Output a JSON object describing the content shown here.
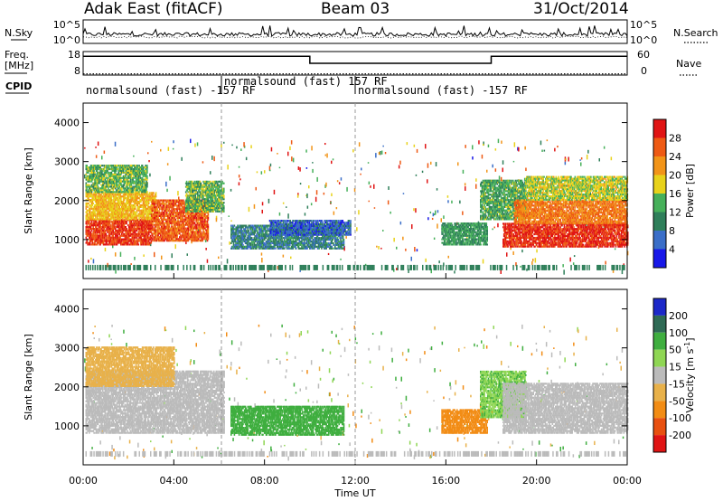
{
  "header": {
    "radar": "Adak East (fitACF)",
    "beam": "Beam 03",
    "date": "31/Oct/2014"
  },
  "chart_data": [
    {
      "type": "line",
      "panel": "noise",
      "left_label": "N.Sky",
      "right_label": "N.Search",
      "left_ticks": [
        "10^5",
        "10^0"
      ],
      "right_ticks": [
        "10^5",
        "10^0"
      ]
    },
    {
      "type": "line",
      "panel": "frequency",
      "left_label_lines": [
        "Freq.",
        "[MHz]"
      ],
      "right_label": "Nave",
      "left_ticks": [
        18,
        8
      ],
      "right_ticks": [
        60,
        0
      ],
      "freq_series": {
        "x": [
          0,
          10,
          18,
          24
        ],
        "y": [
          16,
          13,
          16,
          16
        ]
      },
      "nave_series": {
        "x": [
          0,
          24
        ],
        "y": [
          3,
          3
        ]
      }
    },
    {
      "type": "table",
      "panel": "cpid",
      "label": "CPID",
      "segments": [
        {
          "start": 0,
          "end": 6.1,
          "text": "normalsound (fast) -157 RF"
        },
        {
          "start": 6.1,
          "end": 12.0,
          "text": "normalsound (fast) 157 RF"
        },
        {
          "start": 12.0,
          "end": 24,
          "text": "normalsound (fast) -157 RF"
        }
      ]
    },
    {
      "type": "heatmap",
      "panel": "power",
      "ylabel": "Slant Range [km]",
      "ylim": [
        0,
        4500
      ],
      "yticks": [
        1000,
        2000,
        3000,
        4000
      ],
      "xlim": [
        0,
        24
      ],
      "colorbar_label": "Power [dB]",
      "colorbar_ticks": [
        4,
        8,
        12,
        16,
        20,
        24,
        28
      ],
      "colorbar_range": [
        0,
        32
      ],
      "colors": [
        "#1818e8",
        "#3a6ec8",
        "#2f7f5a",
        "#46b05a",
        "#e8d21a",
        "#f29418",
        "#ee5a14",
        "#e01414"
      ],
      "regions": [
        {
          "t0": 0.1,
          "t1": 3.0,
          "r0": 850,
          "r1": 1500,
          "value": 28
        },
        {
          "t0": 0.1,
          "t1": 3.2,
          "r0": 1500,
          "r1": 2200,
          "value": 20
        },
        {
          "t0": 0.1,
          "t1": 2.8,
          "r0": 2200,
          "r1": 2900,
          "value": 14
        },
        {
          "t0": 3.0,
          "t1": 5.5,
          "r0": 950,
          "r1": 2000,
          "value": 26
        },
        {
          "t0": 4.5,
          "t1": 6.2,
          "r0": 1700,
          "r1": 2500,
          "value": 14
        },
        {
          "t0": 6.5,
          "t1": 11.5,
          "r0": 750,
          "r1": 1350,
          "value": 9
        },
        {
          "t0": 8.2,
          "t1": 11.8,
          "r0": 1100,
          "r1": 1500,
          "value": 6
        },
        {
          "t0": 15.8,
          "t1": 17.8,
          "r0": 850,
          "r1": 1400,
          "value": 12
        },
        {
          "t0": 17.5,
          "t1": 19.5,
          "r0": 1500,
          "r1": 2500,
          "value": 13
        },
        {
          "t0": 18.5,
          "t1": 24,
          "r0": 800,
          "r1": 1400,
          "value": 29
        },
        {
          "t0": 19.0,
          "t1": 24,
          "r0": 1400,
          "r1": 2000,
          "value": 24
        },
        {
          "t0": 19.5,
          "t1": 24,
          "r0": 2000,
          "r1": 2600,
          "value": 17
        }
      ]
    },
    {
      "type": "heatmap",
      "panel": "velocity",
      "ylabel": "Slant Range [km]",
      "ylim": [
        0,
        4500
      ],
      "yticks": [
        1000,
        2000,
        3000,
        4000
      ],
      "xlim": [
        0,
        24
      ],
      "xticks": [
        "00:00",
        "04:00",
        "08:00",
        "12:00",
        "16:00",
        "20:00",
        "00:00"
      ],
      "xlabel": "Time UT",
      "colorbar_label": "Velocity [m s^-1]",
      "colorbar_ticks": [
        "200",
        "100",
        "50",
        "15",
        "-15",
        "-50",
        "-100",
        "-200"
      ],
      "colors": [
        "#1c28c8",
        "#2f6a55",
        "#3fae3f",
        "#8fd654",
        "#bbbbbb",
        "#e8b14a",
        "#f28c14",
        "#e85010",
        "#e01414"
      ],
      "regions": [
        {
          "t0": 0.1,
          "t1": 6.2,
          "r0": 800,
          "r1": 2400,
          "value": 0
        },
        {
          "t0": 0.1,
          "t1": 4.0,
          "r0": 2000,
          "r1": 3000,
          "value": -20
        },
        {
          "t0": 6.5,
          "t1": 11.5,
          "r0": 750,
          "r1": 1500,
          "value": 40
        },
        {
          "t0": 15.8,
          "t1": 17.8,
          "r0": 800,
          "r1": 1400,
          "value": -40
        },
        {
          "t0": 17.5,
          "t1": 19.5,
          "r0": 1200,
          "r1": 2400,
          "value": 30
        },
        {
          "t0": 18.5,
          "t1": 24,
          "r0": 800,
          "r1": 2100,
          "value": 0
        }
      ]
    }
  ]
}
